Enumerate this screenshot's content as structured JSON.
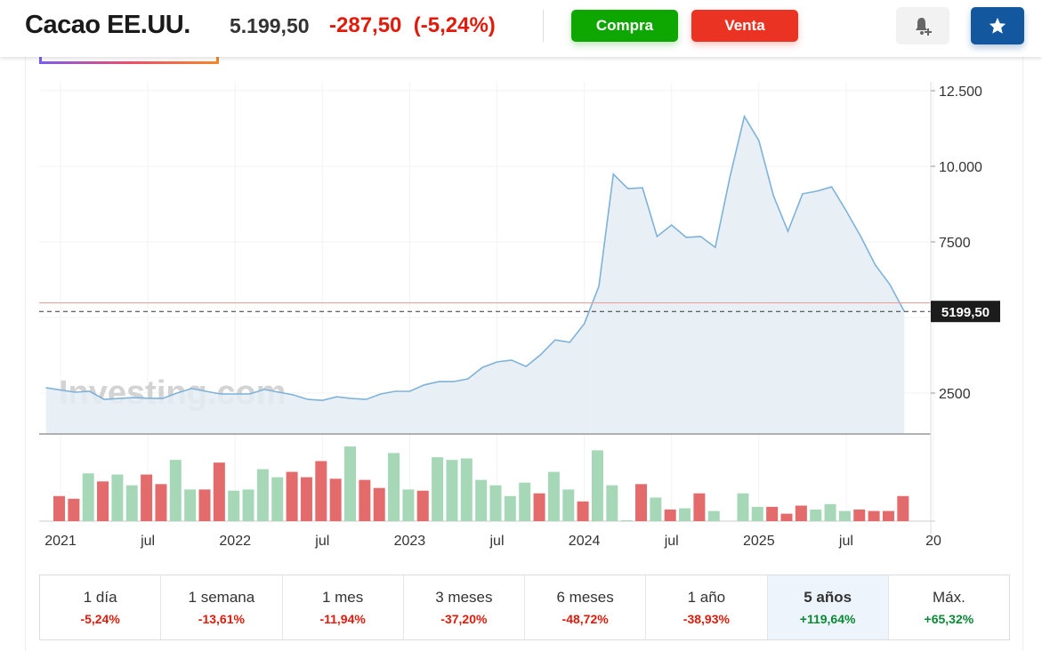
{
  "header": {
    "title": "Cacao EE.UU.",
    "price": "5.199,50",
    "change": "-287,50",
    "change_pct": "(-5,24%)",
    "buy_label": "Compra",
    "sell_label": "Venta",
    "alert_icon": "bell-plus-icon",
    "favorite_icon": "star-icon"
  },
  "colors": {
    "up": "#0ea600",
    "down": "#eb3323",
    "line": "#7fb2d9",
    "fill": "#e4edf4",
    "vol_up": "#a6d8b8",
    "vol_down": "#e36b6b"
  },
  "watermark": "Investing.com",
  "chart_data": {
    "type": "area",
    "y_ticks": [
      "12.500",
      "10.000",
      "7500",
      "2500"
    ],
    "y_tick_values": [
      12500,
      10000,
      7500,
      2500
    ],
    "x_ticks": [
      "2021",
      "jul",
      "2022",
      "jul",
      "2023",
      "jul",
      "2024",
      "jul",
      "2025",
      "jul",
      "20"
    ],
    "x_tick_dates": [
      "2021-01",
      "2021-07",
      "2022-01",
      "2022-07",
      "2023-01",
      "2023-07",
      "2024-01",
      "2024-07",
      "2025-01",
      "2025-07",
      "2026-01"
    ],
    "current_price_label": "5199,50",
    "current_price": 5199.5,
    "previous_close": 5487,
    "grid": true,
    "price_series": {
      "dates": [
        "2020-12",
        "2021-01",
        "2021-02",
        "2021-03",
        "2021-04",
        "2021-05",
        "2021-06",
        "2021-07",
        "2021-08",
        "2021-09",
        "2021-10",
        "2021-11",
        "2021-12",
        "2022-01",
        "2022-02",
        "2022-03",
        "2022-04",
        "2022-05",
        "2022-06",
        "2022-07",
        "2022-08",
        "2022-09",
        "2022-10",
        "2022-11",
        "2022-12",
        "2023-01",
        "2023-02",
        "2023-03",
        "2023-04",
        "2023-05",
        "2023-06",
        "2023-07",
        "2023-08",
        "2023-09",
        "2023-10",
        "2023-11",
        "2023-12",
        "2024-01",
        "2024-02",
        "2024-03",
        "2024-04",
        "2024-05",
        "2024-06",
        "2024-07",
        "2024-08",
        "2024-09",
        "2024-10",
        "2024-11",
        "2024-12",
        "2025-01",
        "2025-02",
        "2025-03",
        "2025-04",
        "2025-05",
        "2025-06",
        "2025-07",
        "2025-08",
        "2025-09",
        "2025-10",
        "2025-11"
      ],
      "values": [
        2680,
        2600,
        2530,
        2560,
        2290,
        2320,
        2350,
        2330,
        2320,
        2500,
        2650,
        2560,
        2470,
        2470,
        2470,
        2620,
        2530,
        2440,
        2290,
        2260,
        2380,
        2320,
        2290,
        2470,
        2560,
        2560,
        2770,
        2880,
        2880,
        2970,
        3350,
        3530,
        3590,
        3380,
        3770,
        4260,
        4180,
        4790,
        6030,
        9740,
        9260,
        9290,
        7680,
        8060,
        7650,
        7680,
        7320,
        9620,
        11650,
        10850,
        9030,
        7850,
        9090,
        9180,
        9320,
        8530,
        7680,
        6740,
        6090,
        5199.5
      ]
    },
    "volume_series": {
      "direction": [
        "down",
        "down",
        "up",
        "down",
        "up",
        "up",
        "down",
        "down",
        "up",
        "up",
        "down",
        "down",
        "up",
        "up",
        "up",
        "up",
        "down",
        "down",
        "down",
        "down",
        "up",
        "down",
        "down",
        "up",
        "up",
        "down",
        "up",
        "up",
        "up",
        "up",
        "up",
        "up",
        "up",
        "down",
        "up",
        "up",
        "down",
        "up",
        "up",
        "up",
        "down",
        "up",
        "down",
        "up",
        "down",
        "up",
        "none",
        "up",
        "up",
        "down",
        "down",
        "down",
        "up",
        "up",
        "up",
        "down",
        "down",
        "down",
        "down"
      ],
      "values": [
        84,
        75,
        160,
        133,
        156,
        120,
        156,
        124,
        205,
        106,
        106,
        196,
        102,
        106,
        174,
        147,
        165,
        147,
        201,
        142,
        250,
        138,
        111,
        228,
        106,
        102,
        214,
        205,
        210,
        138,
        120,
        84,
        129,
        93,
        165,
        106,
        66,
        237,
        120,
        3,
        124,
        79,
        39,
        43,
        93,
        34,
        0,
        93,
        48,
        48,
        25,
        52,
        39,
        57,
        34,
        39,
        34,
        34,
        84
      ]
    }
  },
  "periods": [
    {
      "label": "1 día",
      "value": "-5,24%",
      "dir": "neg"
    },
    {
      "label": "1 semana",
      "value": "-13,61%",
      "dir": "neg"
    },
    {
      "label": "1 mes",
      "value": "-11,94%",
      "dir": "neg"
    },
    {
      "label": "3 meses",
      "value": "-37,20%",
      "dir": "neg"
    },
    {
      "label": "6 meses",
      "value": "-48,72%",
      "dir": "neg"
    },
    {
      "label": "1 año",
      "value": "-38,93%",
      "dir": "neg"
    },
    {
      "label": "5 años",
      "value": "+119,64%",
      "dir": "pos",
      "active": true
    },
    {
      "label": "Máx.",
      "value": "+65,32%",
      "dir": "pos"
    }
  ]
}
